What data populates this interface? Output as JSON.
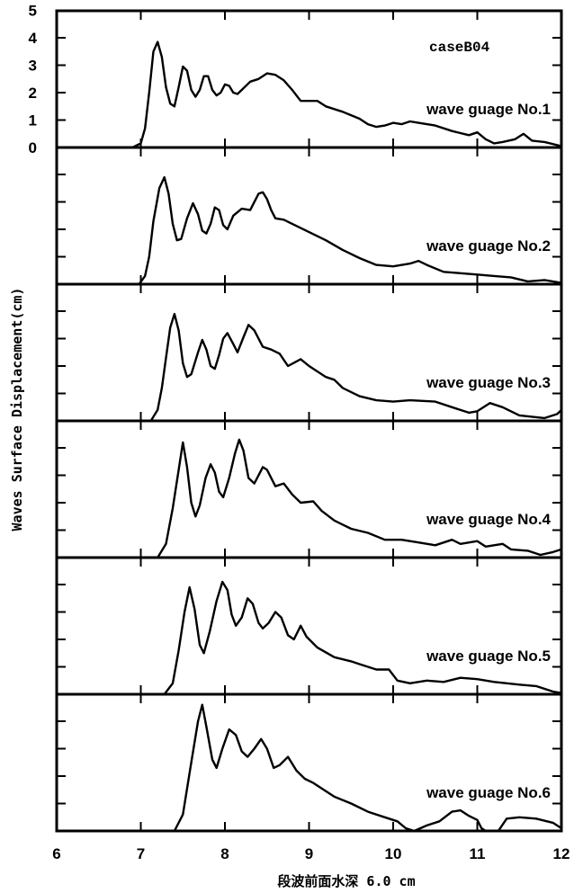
{
  "chart_data": {
    "type": "line",
    "case_label": "caseB04",
    "ylabel": "Waves Surface Displacement(cm)",
    "xlabel": "段波前面水深 6.0 cm",
    "xlim": [
      6,
      12
    ],
    "x_ticks": [
      "6",
      "7",
      "8",
      "9",
      "10",
      "11",
      "12"
    ],
    "ylim": [
      0,
      5
    ],
    "y_ticks": [
      "0",
      "1",
      "2",
      "3",
      "4",
      "5"
    ],
    "panels": [
      {
        "label": "wave guage No.1",
        "points": [
          [
            6.0,
            0
          ],
          [
            6.9,
            0
          ],
          [
            7.0,
            0.15
          ],
          [
            7.05,
            0.7
          ],
          [
            7.1,
            2.0
          ],
          [
            7.15,
            3.5
          ],
          [
            7.2,
            3.85
          ],
          [
            7.25,
            3.3
          ],
          [
            7.3,
            2.2
          ],
          [
            7.35,
            1.6
          ],
          [
            7.4,
            1.5
          ],
          [
            7.45,
            2.2
          ],
          [
            7.5,
            2.95
          ],
          [
            7.55,
            2.8
          ],
          [
            7.6,
            2.1
          ],
          [
            7.65,
            1.85
          ],
          [
            7.7,
            2.1
          ],
          [
            7.75,
            2.6
          ],
          [
            7.8,
            2.6
          ],
          [
            7.85,
            2.1
          ],
          [
            7.9,
            1.9
          ],
          [
            7.95,
            2.0
          ],
          [
            8.0,
            2.3
          ],
          [
            8.05,
            2.25
          ],
          [
            8.1,
            2.0
          ],
          [
            8.15,
            1.95
          ],
          [
            8.2,
            2.1
          ],
          [
            8.3,
            2.4
          ],
          [
            8.4,
            2.5
          ],
          [
            8.5,
            2.7
          ],
          [
            8.6,
            2.65
          ],
          [
            8.7,
            2.45
          ],
          [
            8.8,
            2.1
          ],
          [
            8.9,
            1.7
          ],
          [
            9.0,
            1.7
          ],
          [
            9.1,
            1.7
          ],
          [
            9.2,
            1.5
          ],
          [
            9.4,
            1.3
          ],
          [
            9.6,
            1.05
          ],
          [
            9.7,
            0.85
          ],
          [
            9.8,
            0.75
          ],
          [
            9.9,
            0.8
          ],
          [
            10.0,
            0.9
          ],
          [
            10.1,
            0.85
          ],
          [
            10.2,
            0.95
          ],
          [
            10.3,
            0.9
          ],
          [
            10.5,
            0.8
          ],
          [
            10.7,
            0.6
          ],
          [
            10.9,
            0.45
          ],
          [
            11.0,
            0.55
          ],
          [
            11.1,
            0.3
          ],
          [
            11.2,
            0.15
          ],
          [
            11.3,
            0.2
          ],
          [
            11.45,
            0.3
          ],
          [
            11.55,
            0.5
          ],
          [
            11.65,
            0.25
          ],
          [
            11.8,
            0.2
          ],
          [
            12.0,
            0.05
          ]
        ]
      },
      {
        "label": "wave guage No.2",
        "points": [
          [
            6.0,
            0
          ],
          [
            6.98,
            0
          ],
          [
            7.05,
            0.3
          ],
          [
            7.1,
            1.0
          ],
          [
            7.15,
            2.3
          ],
          [
            7.22,
            3.5
          ],
          [
            7.28,
            3.9
          ],
          [
            7.33,
            3.3
          ],
          [
            7.38,
            2.2
          ],
          [
            7.43,
            1.6
          ],
          [
            7.48,
            1.65
          ],
          [
            7.55,
            2.4
          ],
          [
            7.62,
            2.95
          ],
          [
            7.68,
            2.55
          ],
          [
            7.73,
            1.95
          ],
          [
            7.78,
            1.85
          ],
          [
            7.83,
            2.2
          ],
          [
            7.88,
            2.8
          ],
          [
            7.93,
            2.7
          ],
          [
            7.98,
            2.15
          ],
          [
            8.03,
            2.0
          ],
          [
            8.1,
            2.5
          ],
          [
            8.2,
            2.75
          ],
          [
            8.3,
            2.7
          ],
          [
            8.4,
            3.3
          ],
          [
            8.45,
            3.35
          ],
          [
            8.5,
            3.1
          ],
          [
            8.55,
            2.7
          ],
          [
            8.6,
            2.4
          ],
          [
            8.7,
            2.35
          ],
          [
            8.8,
            2.2
          ],
          [
            9.0,
            1.9
          ],
          [
            9.2,
            1.6
          ],
          [
            9.4,
            1.25
          ],
          [
            9.6,
            0.95
          ],
          [
            9.8,
            0.7
          ],
          [
            10.0,
            0.65
          ],
          [
            10.2,
            0.75
          ],
          [
            10.3,
            0.85
          ],
          [
            10.4,
            0.7
          ],
          [
            10.6,
            0.45
          ],
          [
            10.8,
            0.4
          ],
          [
            11.0,
            0.35
          ],
          [
            11.2,
            0.3
          ],
          [
            11.4,
            0.25
          ],
          [
            11.6,
            0.1
          ],
          [
            11.8,
            0.15
          ],
          [
            12.0,
            0.05
          ]
        ]
      },
      {
        "label": "wave guage No.3",
        "points": [
          [
            6.0,
            0
          ],
          [
            7.12,
            0
          ],
          [
            7.2,
            0.4
          ],
          [
            7.25,
            1.2
          ],
          [
            7.3,
            2.3
          ],
          [
            7.35,
            3.4
          ],
          [
            7.4,
            3.9
          ],
          [
            7.45,
            3.3
          ],
          [
            7.5,
            2.1
          ],
          [
            7.55,
            1.6
          ],
          [
            7.6,
            1.7
          ],
          [
            7.68,
            2.5
          ],
          [
            7.73,
            2.95
          ],
          [
            7.78,
            2.6
          ],
          [
            7.83,
            2.0
          ],
          [
            7.88,
            1.9
          ],
          [
            7.93,
            2.4
          ],
          [
            7.98,
            3.0
          ],
          [
            8.03,
            3.2
          ],
          [
            8.1,
            2.8
          ],
          [
            8.15,
            2.5
          ],
          [
            8.22,
            3.05
          ],
          [
            8.28,
            3.5
          ],
          [
            8.35,
            3.3
          ],
          [
            8.45,
            2.7
          ],
          [
            8.55,
            2.6
          ],
          [
            8.65,
            2.45
          ],
          [
            8.75,
            2.0
          ],
          [
            8.9,
            2.25
          ],
          [
            9.0,
            2.0
          ],
          [
            9.2,
            1.6
          ],
          [
            9.3,
            1.5
          ],
          [
            9.4,
            1.2
          ],
          [
            9.6,
            0.9
          ],
          [
            9.8,
            0.75
          ],
          [
            10.0,
            0.7
          ],
          [
            10.2,
            0.75
          ],
          [
            10.5,
            0.7
          ],
          [
            10.7,
            0.5
          ],
          [
            10.9,
            0.3
          ],
          [
            11.0,
            0.35
          ],
          [
            11.15,
            0.65
          ],
          [
            11.3,
            0.5
          ],
          [
            11.5,
            0.2
          ],
          [
            11.8,
            0.1
          ],
          [
            11.95,
            0.25
          ],
          [
            12.0,
            0.4
          ]
        ]
      },
      {
        "label": "wave guage No.4",
        "points": [
          [
            6.0,
            0
          ],
          [
            7.2,
            0
          ],
          [
            7.3,
            0.5
          ],
          [
            7.38,
            1.8
          ],
          [
            7.45,
            3.2
          ],
          [
            7.5,
            4.2
          ],
          [
            7.55,
            3.3
          ],
          [
            7.6,
            2.0
          ],
          [
            7.65,
            1.5
          ],
          [
            7.7,
            1.9
          ],
          [
            7.77,
            2.9
          ],
          [
            7.83,
            3.4
          ],
          [
            7.88,
            3.1
          ],
          [
            7.93,
            2.4
          ],
          [
            7.98,
            2.2
          ],
          [
            8.05,
            2.9
          ],
          [
            8.12,
            3.8
          ],
          [
            8.17,
            4.3
          ],
          [
            8.22,
            3.9
          ],
          [
            8.28,
            2.9
          ],
          [
            8.35,
            2.7
          ],
          [
            8.45,
            3.3
          ],
          [
            8.5,
            3.2
          ],
          [
            8.6,
            2.6
          ],
          [
            8.7,
            2.7
          ],
          [
            8.8,
            2.3
          ],
          [
            8.9,
            2.0
          ],
          [
            9.05,
            2.05
          ],
          [
            9.15,
            1.7
          ],
          [
            9.3,
            1.35
          ],
          [
            9.5,
            1.05
          ],
          [
            9.7,
            0.9
          ],
          [
            9.9,
            0.65
          ],
          [
            10.1,
            0.65
          ],
          [
            10.3,
            0.55
          ],
          [
            10.5,
            0.45
          ],
          [
            10.7,
            0.65
          ],
          [
            10.8,
            0.5
          ],
          [
            11.0,
            0.6
          ],
          [
            11.1,
            0.4
          ],
          [
            11.3,
            0.5
          ],
          [
            11.4,
            0.3
          ],
          [
            11.6,
            0.25
          ],
          [
            11.75,
            0.1
          ],
          [
            11.9,
            0.2
          ],
          [
            12.0,
            0.3
          ]
        ]
      },
      {
        "label": "wave guage No.5",
        "points": [
          [
            6.0,
            0
          ],
          [
            7.28,
            0
          ],
          [
            7.38,
            0.4
          ],
          [
            7.45,
            1.6
          ],
          [
            7.52,
            3.0
          ],
          [
            7.58,
            3.9
          ],
          [
            7.64,
            3.1
          ],
          [
            7.7,
            1.8
          ],
          [
            7.75,
            1.5
          ],
          [
            7.82,
            2.3
          ],
          [
            7.9,
            3.4
          ],
          [
            7.97,
            4.1
          ],
          [
            8.03,
            3.8
          ],
          [
            8.08,
            2.9
          ],
          [
            8.13,
            2.5
          ],
          [
            8.2,
            2.8
          ],
          [
            8.27,
            3.5
          ],
          [
            8.33,
            3.3
          ],
          [
            8.4,
            2.6
          ],
          [
            8.45,
            2.4
          ],
          [
            8.52,
            2.6
          ],
          [
            8.6,
            3.0
          ],
          [
            8.67,
            2.8
          ],
          [
            8.75,
            2.15
          ],
          [
            8.82,
            2.0
          ],
          [
            8.9,
            2.5
          ],
          [
            8.97,
            2.1
          ],
          [
            9.1,
            1.7
          ],
          [
            9.3,
            1.35
          ],
          [
            9.5,
            1.2
          ],
          [
            9.6,
            1.1
          ],
          [
            9.8,
            0.9
          ],
          [
            9.95,
            0.9
          ],
          [
            10.05,
            0.5
          ],
          [
            10.2,
            0.4
          ],
          [
            10.4,
            0.5
          ],
          [
            10.6,
            0.45
          ],
          [
            10.8,
            0.6
          ],
          [
            11.0,
            0.55
          ],
          [
            11.2,
            0.45
          ],
          [
            11.5,
            0.35
          ],
          [
            11.7,
            0.3
          ],
          [
            11.9,
            0.1
          ],
          [
            12.0,
            0.05
          ]
        ]
      },
      {
        "label": "wave guage No.6",
        "points": [
          [
            6.0,
            0
          ],
          [
            7.4,
            0
          ],
          [
            7.5,
            0.6
          ],
          [
            7.6,
            2.5
          ],
          [
            7.68,
            4.0
          ],
          [
            7.73,
            4.6
          ],
          [
            7.78,
            3.8
          ],
          [
            7.85,
            2.6
          ],
          [
            7.9,
            2.3
          ],
          [
            7.97,
            3.0
          ],
          [
            8.05,
            3.7
          ],
          [
            8.13,
            3.5
          ],
          [
            8.2,
            2.9
          ],
          [
            8.27,
            2.7
          ],
          [
            8.35,
            3.0
          ],
          [
            8.43,
            3.35
          ],
          [
            8.5,
            3.0
          ],
          [
            8.58,
            2.3
          ],
          [
            8.65,
            2.4
          ],
          [
            8.75,
            2.7
          ],
          [
            8.85,
            2.2
          ],
          [
            8.95,
            1.9
          ],
          [
            9.05,
            1.75
          ],
          [
            9.2,
            1.45
          ],
          [
            9.3,
            1.25
          ],
          [
            9.5,
            1.0
          ],
          [
            9.7,
            0.7
          ],
          [
            9.9,
            0.5
          ],
          [
            10.05,
            0.35
          ],
          [
            10.15,
            0.1
          ],
          [
            10.25,
            0.0
          ],
          [
            10.4,
            0.2
          ],
          [
            10.55,
            0.35
          ],
          [
            10.7,
            0.7
          ],
          [
            10.8,
            0.75
          ],
          [
            10.9,
            0.55
          ],
          [
            11.0,
            0.4
          ],
          [
            11.05,
            0.1
          ],
          [
            11.1,
            0.0
          ],
          [
            11.25,
            0.0
          ],
          [
            11.35,
            0.45
          ],
          [
            11.5,
            0.5
          ],
          [
            11.7,
            0.45
          ],
          [
            11.9,
            0.3
          ],
          [
            12.0,
            0.1
          ]
        ]
      }
    ]
  }
}
